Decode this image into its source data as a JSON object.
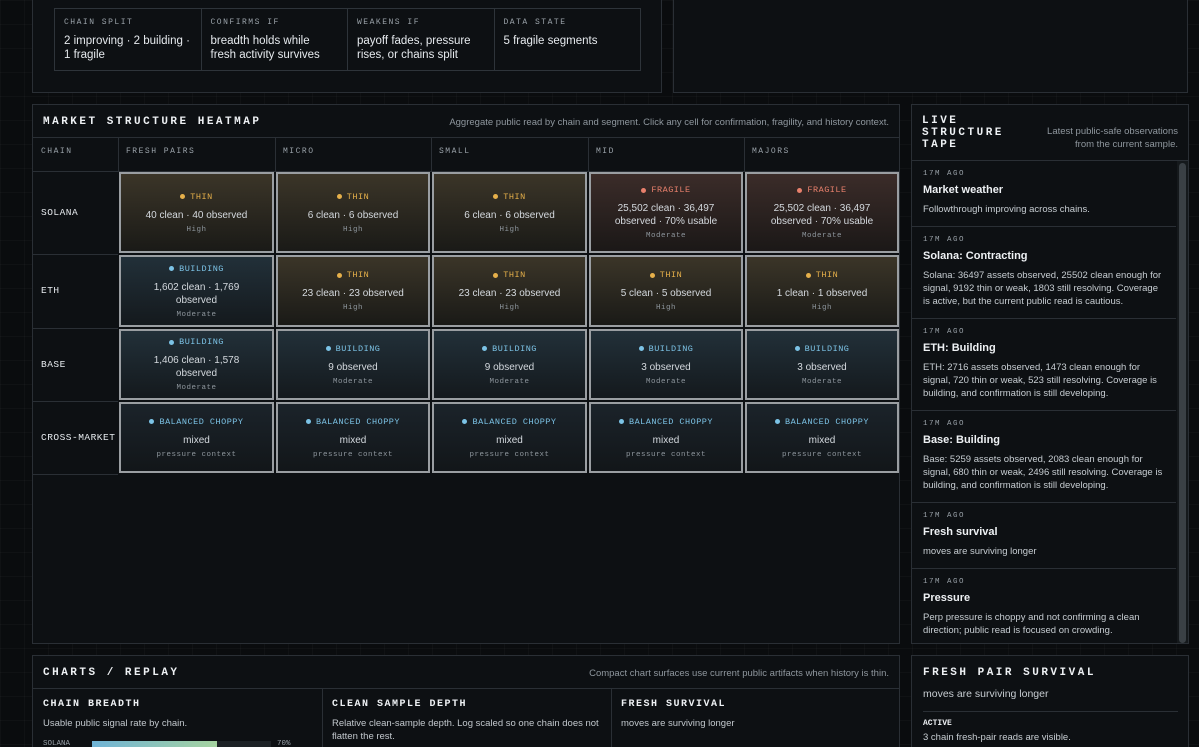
{
  "summary": [
    {
      "label": "CHAIN SPLIT",
      "text": "2 improving · 2 building · 1 fragile"
    },
    {
      "label": "CONFIRMS IF",
      "text": "breadth holds while fresh activity survives"
    },
    {
      "label": "WEAKENS IF",
      "text": "payoff fades, pressure rises, or chains split"
    },
    {
      "label": "DATA STATE",
      "text": "5 fragile segments"
    }
  ],
  "heatmap": {
    "title": "MARKET STRUCTURE HEATMAP",
    "note": "Aggregate public read by chain and segment. Click any cell for confirmation, fragility, and history context.",
    "columns": [
      "CHAIN",
      "FRESH PAIRS",
      "MICRO",
      "SMALL",
      "MID",
      "MAJORS"
    ],
    "status_colors": {
      "THIN": "#e6b04a",
      "FRAGILE": "#e8806c",
      "BUILDING": "#7cc3e6",
      "BALANCED CHOPPY": "#7cc3e6"
    },
    "rows": [
      {
        "chain": "SOLANA",
        "cells": [
          {
            "status": "THIN",
            "main": "40 clean · 40 observed",
            "sub": "High"
          },
          {
            "status": "THIN",
            "main": "6 clean · 6 observed",
            "sub": "High"
          },
          {
            "status": "THIN",
            "main": "6 clean · 6 observed",
            "sub": "High"
          },
          {
            "status": "FRAGILE",
            "main": "25,502 clean · 36,497 observed · 70% usable",
            "sub": "Moderate"
          },
          {
            "status": "FRAGILE",
            "main": "25,502 clean · 36,497 observed · 70% usable",
            "sub": "Moderate"
          }
        ]
      },
      {
        "chain": "ETH",
        "cells": [
          {
            "status": "BUILDING",
            "main": "1,602 clean · 1,769 observed",
            "sub": "Moderate"
          },
          {
            "status": "THIN",
            "main": "23 clean · 23 observed",
            "sub": "High"
          },
          {
            "status": "THIN",
            "main": "23 clean · 23 observed",
            "sub": "High"
          },
          {
            "status": "THIN",
            "main": "5 clean · 5 observed",
            "sub": "High"
          },
          {
            "status": "THIN",
            "main": "1 clean · 1 observed",
            "sub": "High"
          }
        ]
      },
      {
        "chain": "BASE",
        "cells": [
          {
            "status": "BUILDING",
            "main": "1,406 clean · 1,578 observed",
            "sub": "Moderate"
          },
          {
            "status": "BUILDING",
            "main": "9 observed",
            "sub": "Moderate"
          },
          {
            "status": "BUILDING",
            "main": "9 observed",
            "sub": "Moderate"
          },
          {
            "status": "BUILDING",
            "main": "3 observed",
            "sub": "Moderate"
          },
          {
            "status": "BUILDING",
            "main": "3 observed",
            "sub": "Moderate"
          }
        ]
      },
      {
        "chain": "CROSS-MARKET",
        "cells": [
          {
            "status": "BALANCED CHOPPY",
            "main": "mixed",
            "sub": "pressure context"
          },
          {
            "status": "BALANCED CHOPPY",
            "main": "mixed",
            "sub": "pressure context"
          },
          {
            "status": "BALANCED CHOPPY",
            "main": "mixed",
            "sub": "pressure context"
          },
          {
            "status": "BALANCED CHOPPY",
            "main": "mixed",
            "sub": "pressure context"
          },
          {
            "status": "BALANCED CHOPPY",
            "main": "mixed",
            "sub": "pressure context"
          }
        ]
      }
    ]
  },
  "tape": {
    "title": "LIVE STRUCTURE TAPE",
    "note": "Latest public-safe observations from the current sample.",
    "entries": [
      {
        "time": "17M AGO",
        "title": "Market weather",
        "body": "Followthrough improving across chains."
      },
      {
        "time": "17M AGO",
        "title": "Solana: Contracting",
        "body": "Solana: 36497 assets observed, 25502 clean enough for signal, 9192 thin or weak, 1803 still resolving. Coverage is active, but the current public read is cautious."
      },
      {
        "time": "17M AGO",
        "title": "ETH: Building",
        "body": "ETH: 2716 assets observed, 1473 clean enough for signal, 720 thin or weak, 523 still resolving. Coverage is building, and confirmation is still developing."
      },
      {
        "time": "17M AGO",
        "title": "Base: Building",
        "body": "Base: 5259 assets observed, 2083 clean enough for signal, 680 thin or weak, 2496 still resolving. Coverage is building, and confirmation is still developing."
      },
      {
        "time": "17M AGO",
        "title": "Fresh survival",
        "body": "moves are surviving longer"
      },
      {
        "time": "17M AGO",
        "title": "Pressure",
        "body": "Perp pressure is choppy and not confirming a clean direction; public read is focused on crowding."
      }
    ]
  },
  "charts": {
    "title": "CHARTS / REPLAY",
    "note": "Compact chart surfaces use current public artifacts when history is thin.",
    "panels": [
      {
        "title": "CHAIN BREADTH",
        "desc": "Usable public signal rate by chain."
      },
      {
        "title": "CLEAN SAMPLE DEPTH",
        "desc": "Relative clean-sample depth. Log scaled so one chain does not flatten the rest."
      },
      {
        "title": "FRESH SURVIVAL",
        "desc": "moves are surviving longer"
      }
    ],
    "breadth": {
      "label": "SOLANA",
      "value": 70,
      "value_label": "70%",
      "xlim": [
        0,
        100
      ]
    }
  },
  "survival": {
    "title": "FRESH PAIR SURVIVAL",
    "subtitle": "moves are surviving longer",
    "status": "ACTIVE",
    "text": "3 chain fresh-pair reads are visible."
  }
}
